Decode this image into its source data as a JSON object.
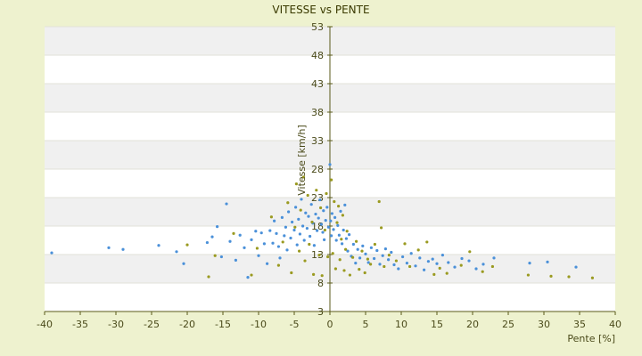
{
  "chart_data": {
    "type": "scatter",
    "title": "VITESSE vs PENTE",
    "xlabel": "Pente [%]",
    "ylabel": "Vitesse [km/h]",
    "xlim": [
      -40,
      40
    ],
    "ylim": [
      3,
      53
    ],
    "x_ticks": [
      "-40",
      "-35",
      "-30",
      "-25",
      "-20",
      "-15",
      "-10",
      "-5",
      "0",
      "5",
      "10",
      "15",
      "20",
      "25",
      "30",
      "35",
      "40"
    ],
    "y_ticks": [
      "3",
      "8",
      "13",
      "18",
      "23",
      "28",
      "33",
      "38",
      "43",
      "48",
      "53"
    ],
    "grid": "horizontal alternating bands",
    "legend": "none",
    "colors": {
      "background": "#eef2cf",
      "band_light": "#ffffff",
      "band_dark": "#f0f0f0",
      "series_a": "#4a90d9",
      "series_b": "#9a9a20",
      "axis": "#5a5a1a"
    },
    "series": [
      {
        "color": "#4a90d9",
        "points": [
          [
            -39,
            13.3
          ],
          [
            -31,
            14.2
          ],
          [
            -29,
            13.9
          ],
          [
            -24,
            14.6
          ],
          [
            -21.5,
            13.5
          ],
          [
            -20.5,
            11.4
          ],
          [
            -17.2,
            15.1
          ],
          [
            -16.5,
            16.1
          ],
          [
            -15.8,
            17.9
          ],
          [
            -15.2,
            12.6
          ],
          [
            -14.5,
            21.9
          ],
          [
            -14,
            15.3
          ],
          [
            -13.2,
            12
          ],
          [
            -12.6,
            16.4
          ],
          [
            -12,
            14.2
          ],
          [
            -11.5,
            9
          ],
          [
            -11,
            15.6
          ],
          [
            -10.4,
            17.1
          ],
          [
            -10,
            12.8
          ],
          [
            -9.6,
            16.8
          ],
          [
            -9.2,
            14.9
          ],
          [
            -8.8,
            11.4
          ],
          [
            -8.4,
            17.2
          ],
          [
            -8,
            15
          ],
          [
            -7.8,
            18.9
          ],
          [
            -7.5,
            16.7
          ],
          [
            -7.2,
            14.4
          ],
          [
            -7,
            12.4
          ],
          [
            -6.7,
            19.5
          ],
          [
            -6.4,
            16.3
          ],
          [
            -6.2,
            17.8
          ],
          [
            -6,
            13.8
          ],
          [
            -5.8,
            20.5
          ],
          [
            -5.5,
            15.9
          ],
          [
            -5.3,
            18.7
          ],
          [
            -5,
            17.3
          ],
          [
            -4.8,
            21.3
          ],
          [
            -4.6,
            14.7
          ],
          [
            -4.4,
            19.2
          ],
          [
            -4.2,
            16.6
          ],
          [
            -4,
            22.7
          ],
          [
            -3.8,
            18
          ],
          [
            -3.6,
            15.5
          ],
          [
            -3.4,
            20.3
          ],
          [
            -3.2,
            17.6
          ],
          [
            -3,
            19.7
          ],
          [
            -2.8,
            16.2
          ],
          [
            -2.6,
            21.8
          ],
          [
            -2.4,
            18.5
          ],
          [
            -2.2,
            14.6
          ],
          [
            -2,
            20.1
          ],
          [
            -1.8,
            17.2
          ],
          [
            -1.6,
            19.4
          ],
          [
            -1.4,
            22.6
          ],
          [
            -1.2,
            18.3
          ],
          [
            -1,
            16.9
          ],
          [
            -0.9,
            20.7
          ],
          [
            -0.8,
            15.6
          ],
          [
            -0.6,
            19
          ],
          [
            -0.4,
            21.3
          ],
          [
            -0.2,
            17.8
          ],
          [
            0,
            28.8
          ],
          [
            0.1,
            18.9
          ],
          [
            0.2,
            16.3
          ],
          [
            0.3,
            20.2
          ],
          [
            0.5,
            17.4
          ],
          [
            0.7,
            19.5
          ],
          [
            0.9,
            15.5
          ],
          [
            1.1,
            18.1
          ],
          [
            1.3,
            16.4
          ],
          [
            1.5,
            20.6
          ],
          [
            1.7,
            14.9
          ],
          [
            1.9,
            17.3
          ],
          [
            2.1,
            21.7
          ],
          [
            2.3,
            15.8
          ],
          [
            2.5,
            13.6
          ],
          [
            2.7,
            16.5
          ],
          [
            3,
            12.7
          ],
          [
            3.3,
            14.8
          ],
          [
            3.6,
            11.5
          ],
          [
            3.9,
            13.9
          ],
          [
            4.2,
            12.4
          ],
          [
            4.6,
            14.5
          ],
          [
            5,
            13.1
          ],
          [
            5.4,
            11.6
          ],
          [
            5.8,
            14.2
          ],
          [
            6.2,
            12.3
          ],
          [
            6.6,
            13.7
          ],
          [
            7,
            11.3
          ],
          [
            7.4,
            12.8
          ],
          [
            7.8,
            14
          ],
          [
            8.2,
            12.1
          ],
          [
            8.6,
            13.4
          ],
          [
            9,
            11.2
          ],
          [
            9.6,
            10.5
          ],
          [
            10.2,
            12.6
          ],
          [
            10.8,
            11.5
          ],
          [
            11.4,
            13.2
          ],
          [
            12,
            11
          ],
          [
            12.6,
            12.4
          ],
          [
            13.2,
            10.3
          ],
          [
            13.8,
            11.8
          ],
          [
            14.4,
            12.2
          ],
          [
            15,
            11.4
          ],
          [
            15.8,
            12.9
          ],
          [
            16.6,
            11.6
          ],
          [
            17.5,
            10.8
          ],
          [
            18.5,
            12.3
          ],
          [
            19.5,
            11.9
          ],
          [
            20.5,
            10.5
          ],
          [
            21.5,
            11.3
          ],
          [
            23,
            12.4
          ],
          [
            28,
            11.5
          ],
          [
            30.5,
            11.7
          ],
          [
            34.5,
            10.8
          ]
        ]
      },
      {
        "color": "#9a9a20",
        "points": [
          [
            -20,
            14.7
          ],
          [
            -17,
            9.1
          ],
          [
            -16.1,
            12.8
          ],
          [
            -13.5,
            16.7
          ],
          [
            -11,
            9.4
          ],
          [
            -10.2,
            14.1
          ],
          [
            -8.2,
            19.6
          ],
          [
            -7.2,
            11.1
          ],
          [
            -6.6,
            15.2
          ],
          [
            -5.9,
            22.1
          ],
          [
            -5.4,
            9.8
          ],
          [
            -4.9,
            17.8
          ],
          [
            -4.7,
            25.4
          ],
          [
            -4.3,
            13.6
          ],
          [
            -4.1,
            20.8
          ],
          [
            -3.7,
            26.6
          ],
          [
            -3.5,
            11.9
          ],
          [
            -3.1,
            23.4
          ],
          [
            -2.9,
            14.8
          ],
          [
            -2.5,
            18.7
          ],
          [
            -2.3,
            9.5
          ],
          [
            -1.9,
            24.3
          ],
          [
            -1.5,
            12.9
          ],
          [
            -1.3,
            21.2
          ],
          [
            -1.1,
            9.3
          ],
          [
            -0.7,
            17.3
          ],
          [
            -0.5,
            23.7
          ],
          [
            -0.3,
            12.6
          ],
          [
            0.2,
            26.1
          ],
          [
            0.4,
            13.2
          ],
          [
            0.6,
            22.3
          ],
          [
            0.8,
            10.5
          ],
          [
            1,
            18.6
          ],
          [
            1.2,
            21.5
          ],
          [
            1.4,
            12.1
          ],
          [
            1.6,
            15.7
          ],
          [
            1.8,
            19.9
          ],
          [
            2,
            10.2
          ],
          [
            2.2,
            13.9
          ],
          [
            2.4,
            17.1
          ],
          [
            2.8,
            9.4
          ],
          [
            3.2,
            12.5
          ],
          [
            3.7,
            15.3
          ],
          [
            4.1,
            10.4
          ],
          [
            4.5,
            13.6
          ],
          [
            4.9,
            9.8
          ],
          [
            5.3,
            12.2
          ],
          [
            5.7,
            11.3
          ],
          [
            6.3,
            14.8
          ],
          [
            6.9,
            22.3
          ],
          [
            7.2,
            17.7
          ],
          [
            7.6,
            10.9
          ],
          [
            8.3,
            12.9
          ],
          [
            9.3,
            11.9
          ],
          [
            10.5,
            14.9
          ],
          [
            11.2,
            10.9
          ],
          [
            12.4,
            13.8
          ],
          [
            13.6,
            15.2
          ],
          [
            14.6,
            9.5
          ],
          [
            15.4,
            10.6
          ],
          [
            16.4,
            9.7
          ],
          [
            18.4,
            11.1
          ],
          [
            19.6,
            13.5
          ],
          [
            21.4,
            10
          ],
          [
            22.8,
            10.9
          ],
          [
            27.8,
            9.4
          ],
          [
            31,
            9.2
          ],
          [
            33.5,
            9.1
          ],
          [
            36.8,
            8.9
          ]
        ]
      }
    ]
  }
}
